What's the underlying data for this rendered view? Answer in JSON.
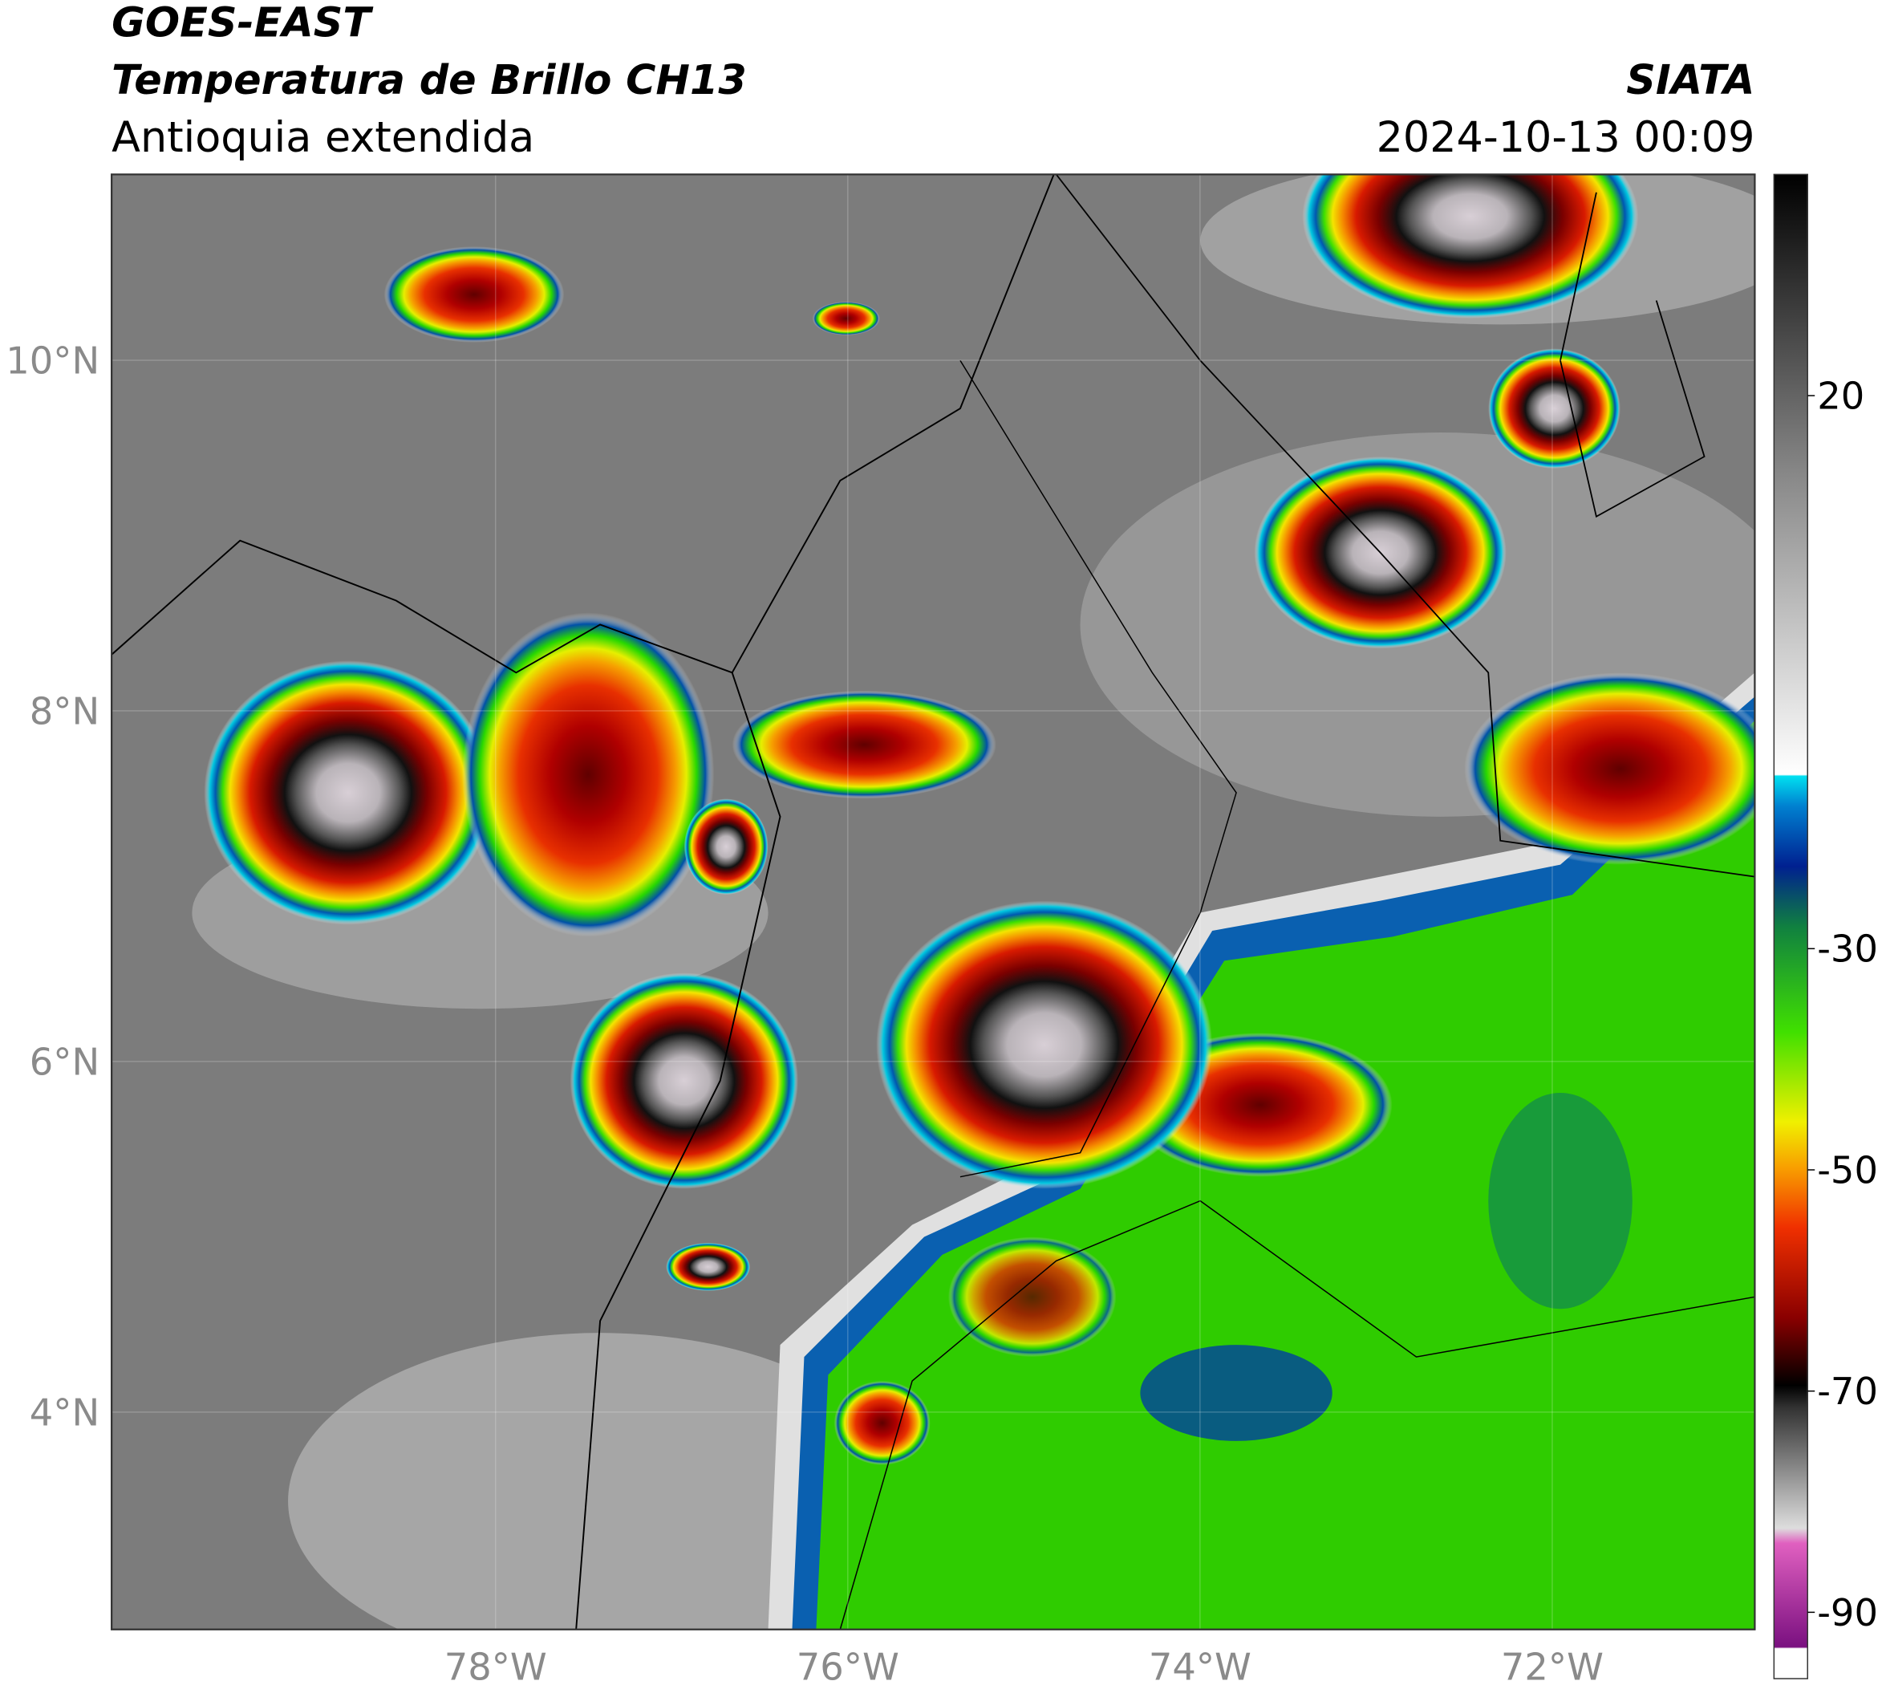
{
  "header": {
    "title": "GOES-EAST",
    "subtitle": "Temperatura de Brillo CH13",
    "region": "Antioquia extendida",
    "source": "SIATA",
    "datetime": "2024-10-13 00:09"
  },
  "map": {
    "xlim": [
      -80.18,
      -70.85
    ],
    "ylim": [
      2.76,
      11.06
    ],
    "xticks": [
      {
        "value": -78,
        "label": "78°W"
      },
      {
        "value": -76,
        "label": "76°W"
      },
      {
        "value": -74,
        "label": "74°W"
      },
      {
        "value": -72,
        "label": "72°W"
      }
    ],
    "yticks": [
      {
        "value": 10,
        "label": "10°N"
      },
      {
        "value": 8,
        "label": "8°N"
      },
      {
        "value": 6,
        "label": "6°N"
      },
      {
        "value": 4,
        "label": "4°N"
      }
    ]
  },
  "colorbar": {
    "lim": [
      -96,
      40
    ],
    "ticks": [
      20,
      -30,
      -50,
      -70,
      -90
    ]
  }
}
